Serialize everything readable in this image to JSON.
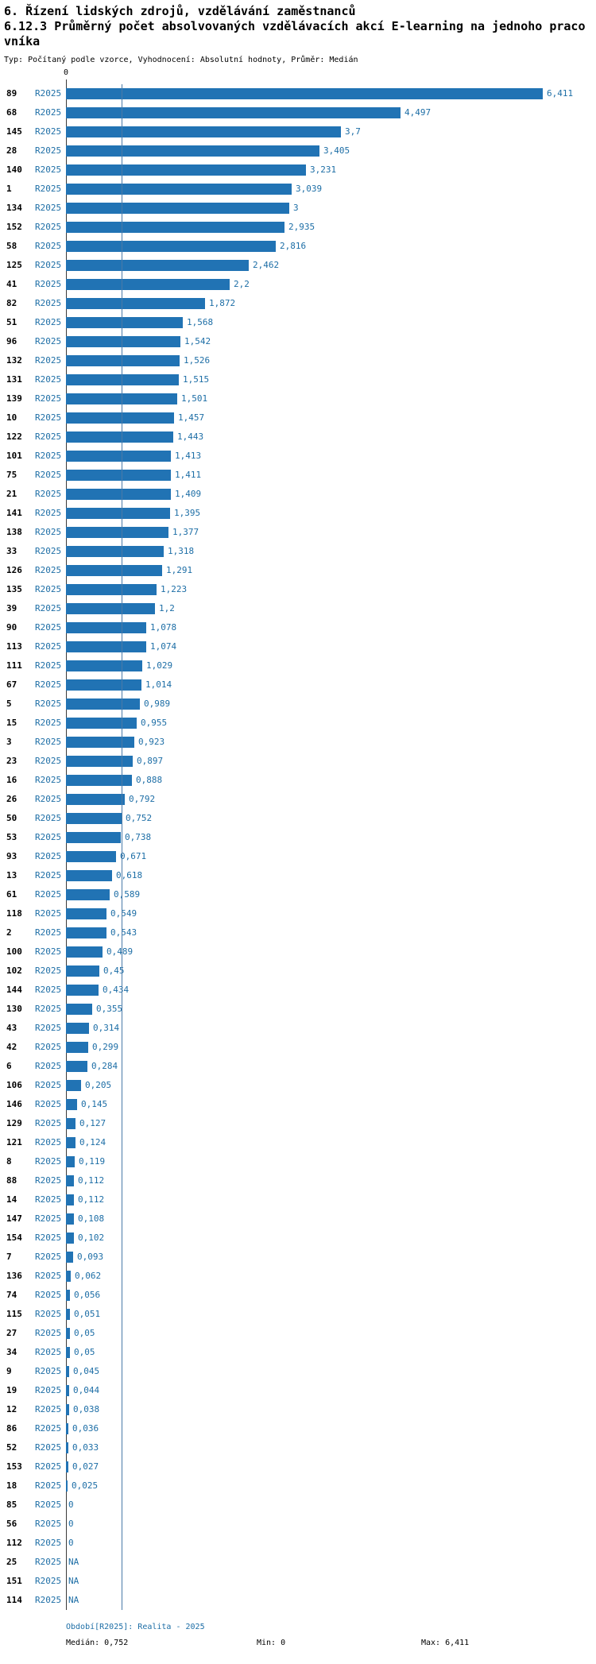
{
  "header": {
    "title1": "6. Řízení lidských zdrojů, vzdělávání zaměstnanců",
    "title2": "6.12.3 Průměrný počet absolvovaných vzdělávacích akcí E-learning na jednoho pracovníka",
    "meta": "Typ: Počítaný podle vzorce, Vyhodnocení: Absolutní hodnoty, Průměr: Medián"
  },
  "chart_data": {
    "type": "bar",
    "orientation": "horizontal",
    "series_label": "R2025",
    "x_axis": {
      "zero_label": "0",
      "min": 0,
      "max": 6.411
    },
    "stats": {
      "median": 0.752,
      "min": 0,
      "max": 6.411
    },
    "colors": {
      "bar": "#2173b4",
      "blue_text": "#1d6ea6",
      "axis": "#3a3a3a",
      "median_line": "#4a7aa8"
    },
    "categories": [
      "89",
      "68",
      "145",
      "28",
      "140",
      "1",
      "134",
      "152",
      "58",
      "125",
      "41",
      "82",
      "51",
      "96",
      "132",
      "131",
      "139",
      "10",
      "122",
      "101",
      "75",
      "21",
      "141",
      "138",
      "33",
      "126",
      "135",
      "39",
      "90",
      "113",
      "111",
      "67",
      "5",
      "15",
      "3",
      "23",
      "16",
      "26",
      "50",
      "53",
      "93",
      "13",
      "61",
      "118",
      "2",
      "100",
      "102",
      "144",
      "130",
      "43",
      "42",
      "6",
      "106",
      "146",
      "129",
      "121",
      "8",
      "88",
      "14",
      "147",
      "154",
      "7",
      "136",
      "74",
      "115",
      "27",
      "34",
      "9",
      "19",
      "12",
      "86",
      "52",
      "153",
      "18",
      "85",
      "56",
      "112",
      "25",
      "151",
      "114"
    ],
    "values": [
      6.411,
      4.497,
      3.7,
      3.405,
      3.231,
      3.039,
      3,
      2.935,
      2.816,
      2.462,
      2.2,
      1.872,
      1.568,
      1.542,
      1.526,
      1.515,
      1.501,
      1.457,
      1.443,
      1.413,
      1.411,
      1.409,
      1.395,
      1.377,
      1.318,
      1.291,
      1.223,
      1.2,
      1.078,
      1.074,
      1.029,
      1.014,
      0.989,
      0.955,
      0.923,
      0.897,
      0.888,
      0.792,
      0.752,
      0.738,
      0.671,
      0.618,
      0.589,
      0.549,
      0.543,
      0.489,
      0.45,
      0.434,
      0.355,
      0.314,
      0.299,
      0.284,
      0.205,
      0.145,
      0.127,
      0.124,
      0.119,
      0.112,
      0.112,
      0.108,
      0.102,
      0.093,
      0.062,
      0.056,
      0.051,
      0.05,
      0.05,
      0.045,
      0.044,
      0.038,
      0.036,
      0.033,
      0.027,
      0.025,
      0,
      0,
      0,
      null,
      null,
      null
    ],
    "value_labels": [
      "6,411",
      "4,497",
      "3,7",
      "3,405",
      "3,231",
      "3,039",
      "3",
      "2,935",
      "2,816",
      "2,462",
      "2,2",
      "1,872",
      "1,568",
      "1,542",
      "1,526",
      "1,515",
      "1,501",
      "1,457",
      "1,443",
      "1,413",
      "1,411",
      "1,409",
      "1,395",
      "1,377",
      "1,318",
      "1,291",
      "1,223",
      "1,2",
      "1,078",
      "1,074",
      "1,029",
      "1,014",
      "0,989",
      "0,955",
      "0,923",
      "0,897",
      "0,888",
      "0,792",
      "0,752",
      "0,738",
      "0,671",
      "0,618",
      "0,589",
      "0,549",
      "0,543",
      "0,489",
      "0,45",
      "0,434",
      "0,355",
      "0,314",
      "0,299",
      "0,284",
      "0,205",
      "0,145",
      "0,127",
      "0,124",
      "0,119",
      "0,112",
      "0,112",
      "0,108",
      "0,102",
      "0,093",
      "0,062",
      "0,056",
      "0,051",
      "0,05",
      "0,05",
      "0,045",
      "0,044",
      "0,038",
      "0,036",
      "0,033",
      "0,027",
      "0,025",
      "0",
      "0",
      "0",
      "NA",
      "NA",
      "NA"
    ]
  },
  "footer": {
    "period": "Období[R2025]: Realita - 2025",
    "median": "Medián: 0,752",
    "min": "Min: 0",
    "max": "Max: 6,411"
  }
}
